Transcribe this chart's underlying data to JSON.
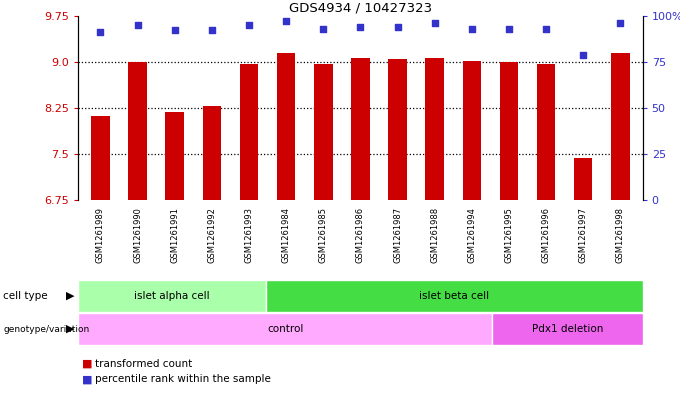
{
  "title": "GDS4934 / 10427323",
  "samples": [
    "GSM1261989",
    "GSM1261990",
    "GSM1261991",
    "GSM1261992",
    "GSM1261993",
    "GSM1261984",
    "GSM1261985",
    "GSM1261986",
    "GSM1261987",
    "GSM1261988",
    "GSM1261994",
    "GSM1261995",
    "GSM1261996",
    "GSM1261997",
    "GSM1261998"
  ],
  "bar_values": [
    8.12,
    9.0,
    8.19,
    8.28,
    8.96,
    9.14,
    8.97,
    9.07,
    9.05,
    9.06,
    9.01,
    9.0,
    8.96,
    7.44,
    9.14
  ],
  "blue_values": [
    91,
    95,
    92,
    92,
    95,
    97,
    93,
    94,
    94,
    96,
    93,
    93,
    93,
    79,
    96
  ],
  "bar_color": "#cc0000",
  "blue_color": "#3333cc",
  "ylim_left": [
    6.75,
    9.75
  ],
  "ylim_right": [
    0,
    100
  ],
  "yticks_left": [
    6.75,
    7.5,
    8.25,
    9.0,
    9.75
  ],
  "yticks_right": [
    0,
    25,
    50,
    75,
    100
  ],
  "grid_values": [
    7.5,
    8.25,
    9.0
  ],
  "cell_type_labels": [
    "islet alpha cell",
    "islet beta cell"
  ],
  "cell_type_ranges": [
    [
      0,
      5
    ],
    [
      5,
      15
    ]
  ],
  "cell_type_colors": [
    "#aaffaa",
    "#44dd44"
  ],
  "genotype_labels": [
    "control",
    "Pdx1 deletion"
  ],
  "genotype_ranges": [
    [
      0,
      11
    ],
    [
      11,
      15
    ]
  ],
  "genotype_colors": [
    "#ffaaff",
    "#ee66ee"
  ],
  "legend_labels": [
    "transformed count",
    "percentile rank within the sample"
  ],
  "legend_colors": [
    "#cc0000",
    "#3333cc"
  ],
  "bar_width": 0.5,
  "gray_bg": "#cccccc",
  "white_bg": "#ffffff"
}
